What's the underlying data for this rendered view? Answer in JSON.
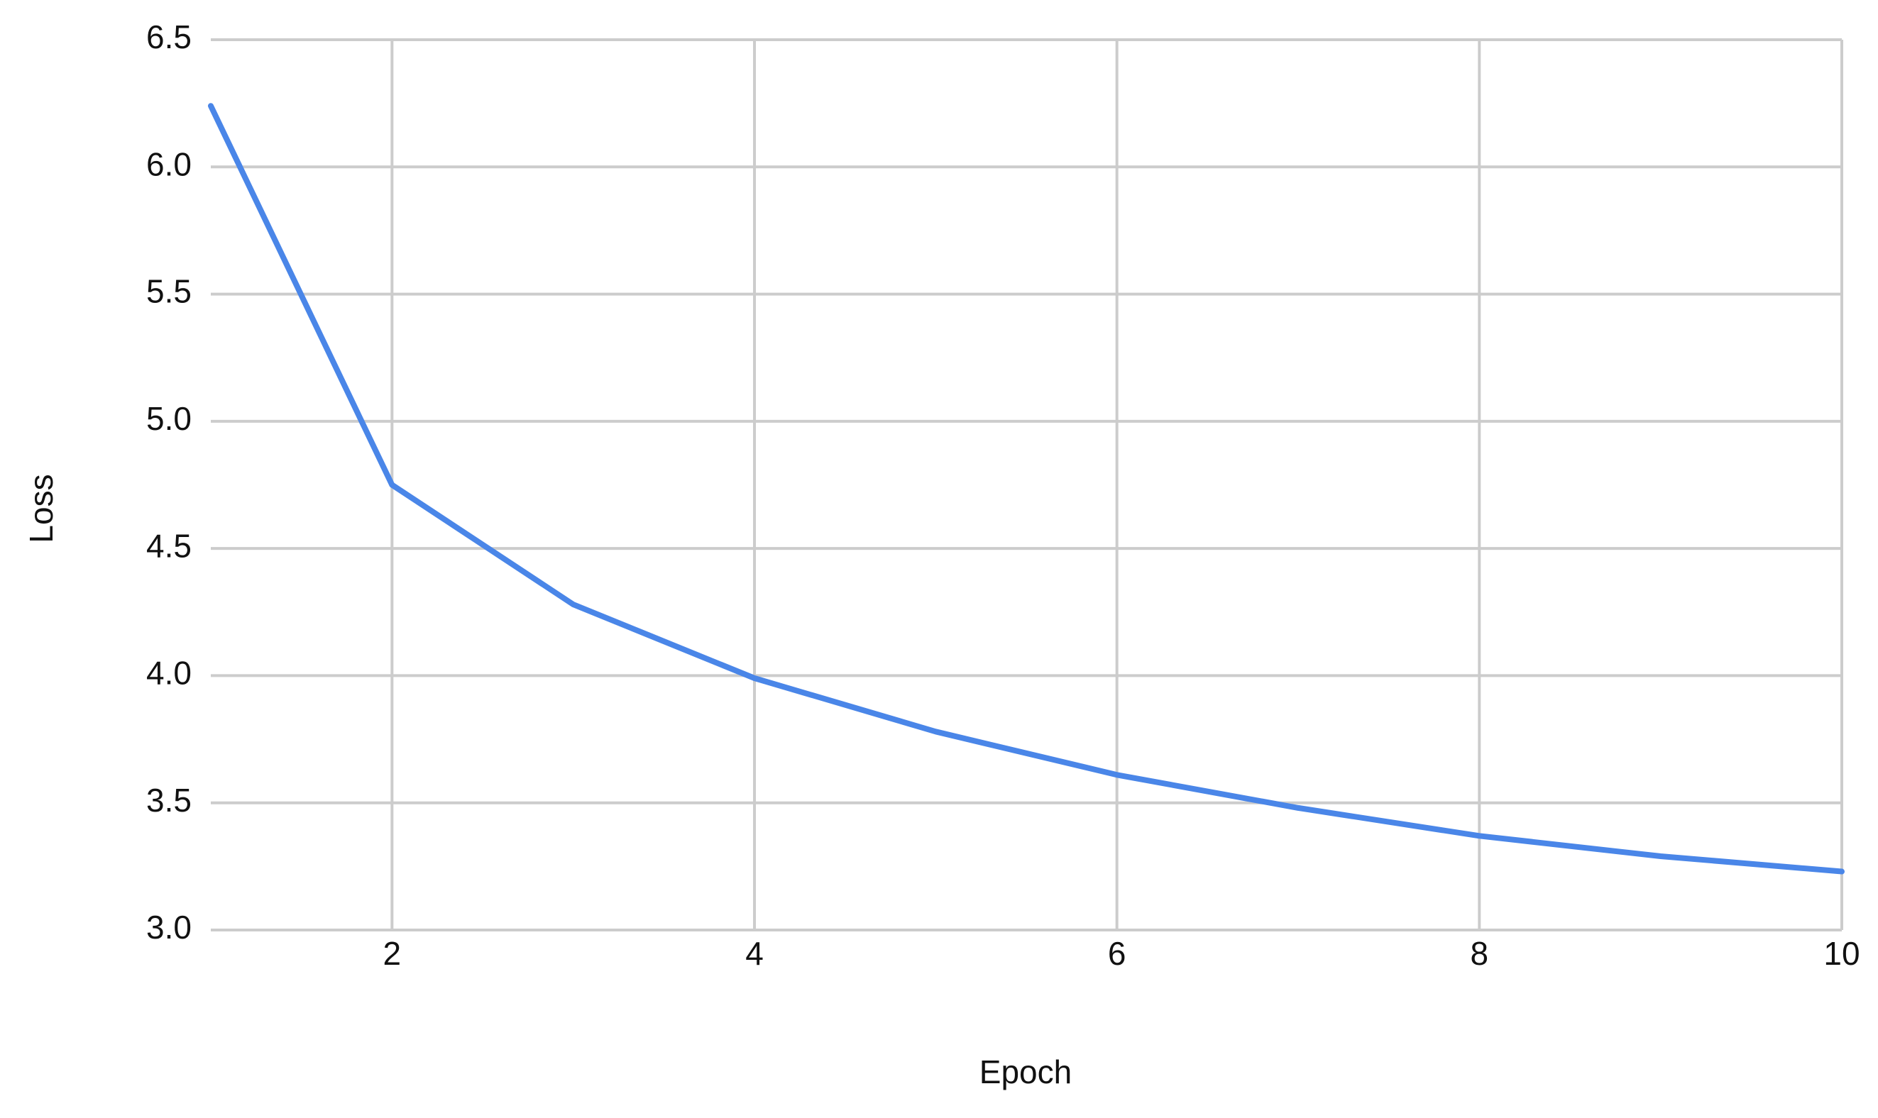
{
  "chart_data": {
    "type": "line",
    "x_label": "Epoch",
    "y_label": "Loss",
    "x": [
      1,
      2,
      3,
      4,
      5,
      6,
      7,
      8,
      9,
      10
    ],
    "series": [
      {
        "name": "Loss",
        "color": "#4a86e8",
        "values": [
          6.24,
          4.75,
          4.28,
          3.99,
          3.78,
          3.61,
          3.48,
          3.37,
          3.29,
          3.23
        ]
      }
    ],
    "xlim": [
      1,
      10
    ],
    "xticks": [
      2,
      4,
      6,
      8,
      10
    ],
    "ylim": [
      3,
      6.5
    ],
    "yticks": [
      {
        "value": 3,
        "label": "3.0"
      },
      {
        "value": 3.5,
        "label": "3.5"
      },
      {
        "value": 4,
        "label": "4.0"
      },
      {
        "value": 4.5,
        "label": "4.5"
      },
      {
        "value": 5,
        "label": "5.0"
      },
      {
        "value": 5.5,
        "label": "5.5"
      },
      {
        "value": 6,
        "label": "6.0"
      },
      {
        "value": 6.5,
        "label": "6.5"
      }
    ],
    "grid": true
  }
}
